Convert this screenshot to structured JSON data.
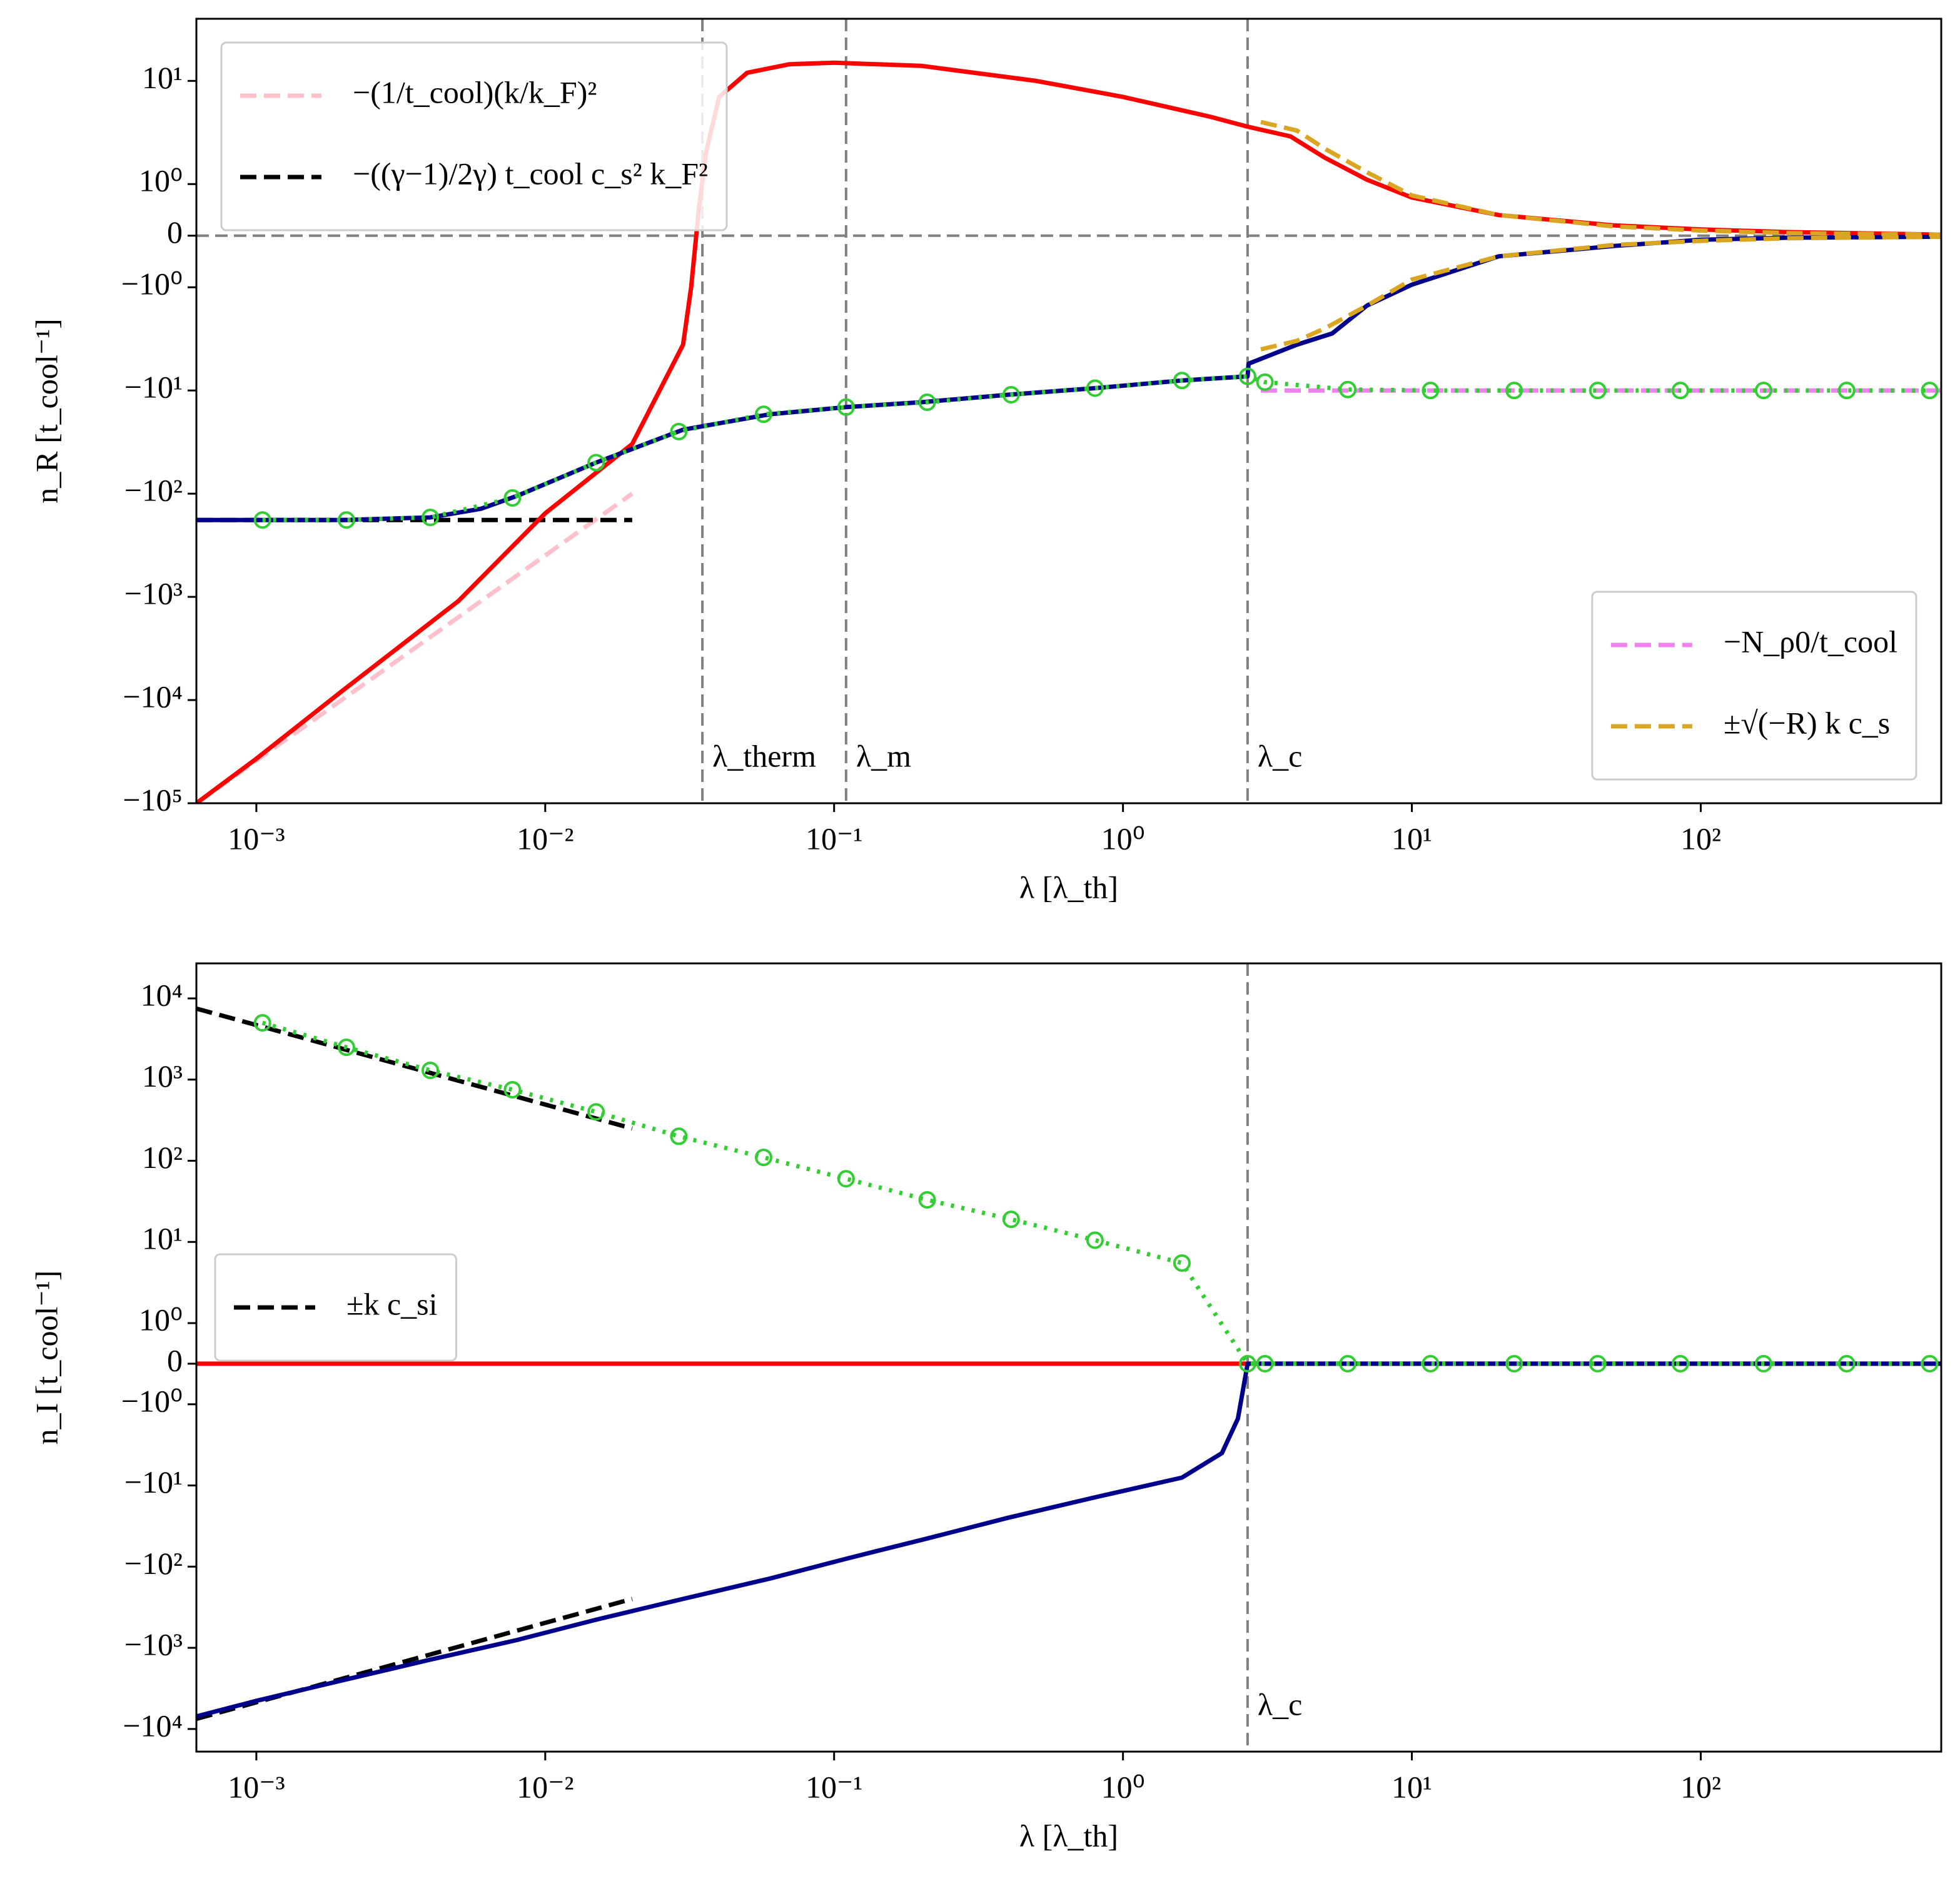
{
  "chart_data": [
    {
      "type": "line",
      "xscale": "log",
      "yscale": "symlog",
      "linthresh": 1,
      "xlabel": "λ [λ_th]",
      "ylabel": "n_R [t_cool⁻¹]",
      "xlim": [
        0.00062,
        680
      ],
      "ylim": [
        -100000,
        40
      ],
      "xticks": [
        {
          "value": 0.001,
          "label": "10⁻³"
        },
        {
          "value": 0.01,
          "label": "10⁻²"
        },
        {
          "value": 0.1,
          "label": "10⁻¹"
        },
        {
          "value": 1,
          "label": "10⁰"
        },
        {
          "value": 10,
          "label": "10¹"
        },
        {
          "value": 100,
          "label": "10²"
        }
      ],
      "yticks": [
        {
          "value": 10,
          "label": "10¹"
        },
        {
          "value": 1,
          "label": "10⁰"
        },
        0,
        {
          "value": -1,
          "label": "−10⁰"
        },
        {
          "value": -10,
          "label": "−10¹"
        },
        {
          "value": -100,
          "label": "−10²"
        },
        {
          "value": -1000,
          "label": "−10³"
        },
        {
          "value": -10000,
          "label": "−10⁴"
        },
        {
          "value": -100000,
          "label": "−10⁵"
        }
      ],
      "hlines": [
        0
      ],
      "vlines": [
        {
          "x": 0.035,
          "label": "λ_therm"
        },
        {
          "x": 0.11,
          "label": "λ_m"
        },
        {
          "x": 2.7,
          "label": "λ_c"
        }
      ],
      "series": [
        {
          "name": "−(1/t_cool)(k/k_F)²",
          "legend": "upper left",
          "color": "#ffc0cb",
          "style": "dashed",
          "x": [
            0.00062,
            0.02
          ],
          "values": [
            -100000,
            -100
          ]
        },
        {
          "name": "−((γ−1)/2γ) t_cool c_s² k_F²",
          "legend": "upper left",
          "color": "#000000",
          "style": "dashed",
          "x": [
            0.00062,
            0.02
          ],
          "values": [
            -180,
            -180
          ]
        },
        {
          "name": "−N_ρ0/t_cool",
          "legend": "lower right",
          "color": "#ee82ee",
          "style": "dashed",
          "x": [
            3,
            680
          ],
          "values": [
            -10,
            -10
          ]
        },
        {
          "color": "#ff0000",
          "style": "solid",
          "x": [
            0.00062,
            0.001,
            0.002,
            0.005,
            0.01,
            0.02,
            0.03,
            0.032,
            0.034,
            0.036,
            0.04,
            0.05,
            0.07,
            0.1,
            0.2,
            0.5,
            1,
            2,
            2.7,
            3.8,
            5,
            7,
            10,
            20,
            50,
            100,
            200,
            680
          ],
          "values": [
            -100000,
            -37000,
            -8000,
            -1100,
            -155,
            -33,
            -3.6,
            -1,
            0.5,
            2,
            7,
            12,
            14.5,
            15,
            14,
            10,
            7,
            4.5,
            3.6,
            2.9,
            1.8,
            1.1,
            0.74,
            0.4,
            0.2,
            0.12,
            0.07,
            0.02
          ]
        },
        {
          "color": "#00008b",
          "style": "solid",
          "x": [
            0.00062,
            0.001,
            0.002,
            0.004,
            0.006,
            0.008,
            0.015,
            0.03,
            0.06,
            0.11,
            0.2,
            0.4,
            0.8,
            1.6,
            2.7,
            2.72,
            4,
            5.3,
            7,
            10,
            20,
            50,
            100,
            200,
            680
          ],
          "values": [
            -180,
            -180,
            -180,
            -170,
            -140,
            -105,
            -50,
            -24,
            -17,
            -14.5,
            -13,
            -11,
            -9.5,
            -8,
            -7.3,
            -5.5,
            -3.6,
            -2.8,
            -1.5,
            -0.95,
            -0.4,
            -0.2,
            -0.08,
            -0.04,
            -0.02
          ]
        },
        {
          "color": "#32cd32",
          "style": "dotted",
          "marker": "circle",
          "x": [
            0.00105,
            0.00205,
            0.004,
            0.0077,
            0.015,
            0.029,
            0.057,
            0.11,
            0.21,
            0.41,
            0.8,
            1.6,
            2.7,
            3.1,
            6,
            11.6,
            22.6,
            44,
            85,
            165,
            320,
            620
          ],
          "values": [
            -180,
            -180,
            -170,
            -110,
            -50,
            -25,
            -17,
            -14.5,
            -13,
            -11,
            -9.5,
            -8,
            -7.3,
            -8.3,
            -9.8,
            -10,
            -10,
            -10,
            -10,
            -10,
            -10,
            -10
          ]
        },
        {
          "name": "±√(−R) k c_s",
          "legend": "lower right",
          "color": "#daa520",
          "style": "dashed",
          "x": [
            3,
            4,
            5,
            7,
            10,
            20,
            50,
            100,
            200,
            680
          ],
          "values": [
            4,
            3.3,
            2.2,
            1.3,
            0.78,
            0.4,
            0.18,
            0.1,
            0.05,
            0.02
          ]
        },
        {
          "color": "#daa520",
          "style": "dashed",
          "x": [
            3,
            4,
            5,
            7,
            10,
            20,
            50,
            100,
            200,
            680
          ],
          "values": [
            -4,
            -3.3,
            -2.5,
            -1.5,
            -0.85,
            -0.4,
            -0.18,
            -0.1,
            -0.05,
            -0.02
          ]
        }
      ]
    },
    {
      "type": "line",
      "xscale": "log",
      "yscale": "symlog",
      "linthresh": 1,
      "xlabel": "λ [λ_th]",
      "ylabel": "n_I [t_cool⁻¹]",
      "xlim": [
        0.00062,
        680
      ],
      "ylim": [
        -19000,
        27000
      ],
      "xticks": [
        {
          "value": 0.001,
          "label": "10⁻³"
        },
        {
          "value": 0.01,
          "label": "10⁻²"
        },
        {
          "value": 0.1,
          "label": "10⁻¹"
        },
        {
          "value": 1,
          "label": "10⁰"
        },
        {
          "value": 10,
          "label": "10¹"
        },
        {
          "value": 100,
          "label": "10²"
        }
      ],
      "yticks": [
        {
          "value": 10000,
          "label": "10⁴"
        },
        {
          "value": 1000,
          "label": "10³"
        },
        {
          "value": 100,
          "label": "10²"
        },
        {
          "value": 10,
          "label": "10¹"
        },
        {
          "value": 1,
          "label": "10⁰"
        },
        0,
        {
          "value": -1,
          "label": "−10⁰"
        },
        {
          "value": -10,
          "label": "−10¹"
        },
        {
          "value": -100,
          "label": "−10²"
        },
        {
          "value": -1000,
          "label": "−10³"
        },
        {
          "value": -10000,
          "label": "−10⁴"
        }
      ],
      "vlines": [
        {
          "x": 2.7,
          "label": "λ_c"
        }
      ],
      "series": [
        {
          "name": "±k c_si",
          "legend": "center left",
          "color": "#000000",
          "style": "dashed",
          "x": [
            0.00062,
            0.02
          ],
          "values": [
            7500,
            250
          ]
        },
        {
          "color": "#000000",
          "style": "dashed",
          "x": [
            0.00062,
            0.02
          ],
          "values": [
            -7500,
            -250
          ]
        },
        {
          "color": "#ff0000",
          "style": "solid",
          "x": [
            0.00062,
            680
          ],
          "values": [
            0,
            0
          ]
        },
        {
          "color": "#00008b",
          "style": "solid",
          "x": [
            0.00062,
            0.001,
            0.002,
            0.004,
            0.008,
            0.015,
            0.03,
            0.06,
            0.11,
            0.21,
            0.4,
            0.8,
            1.6,
            2.2,
            2.5,
            2.7,
            680
          ],
          "values": [
            -7000,
            -4500,
            -2500,
            -1400,
            -800,
            -450,
            -250,
            -140,
            -80,
            -45,
            -25,
            -14,
            -8,
            -4,
            -1.5,
            0,
            0
          ]
        },
        {
          "color": "#32cd32",
          "style": "dotted",
          "marker": "circle",
          "x": [
            0.00105,
            0.00205,
            0.004,
            0.0077,
            0.015,
            0.029,
            0.057,
            0.11,
            0.21,
            0.41,
            0.8,
            1.6,
            2.7,
            3.1,
            6,
            11.6,
            22.6,
            44,
            85,
            165,
            320,
            620
          ],
          "values": [
            5000,
            2500,
            1300,
            750,
            400,
            200,
            110,
            60,
            33,
            19,
            10.5,
            5.5,
            0,
            0,
            0,
            0,
            0,
            0,
            0,
            0,
            0,
            0
          ]
        }
      ]
    }
  ]
}
